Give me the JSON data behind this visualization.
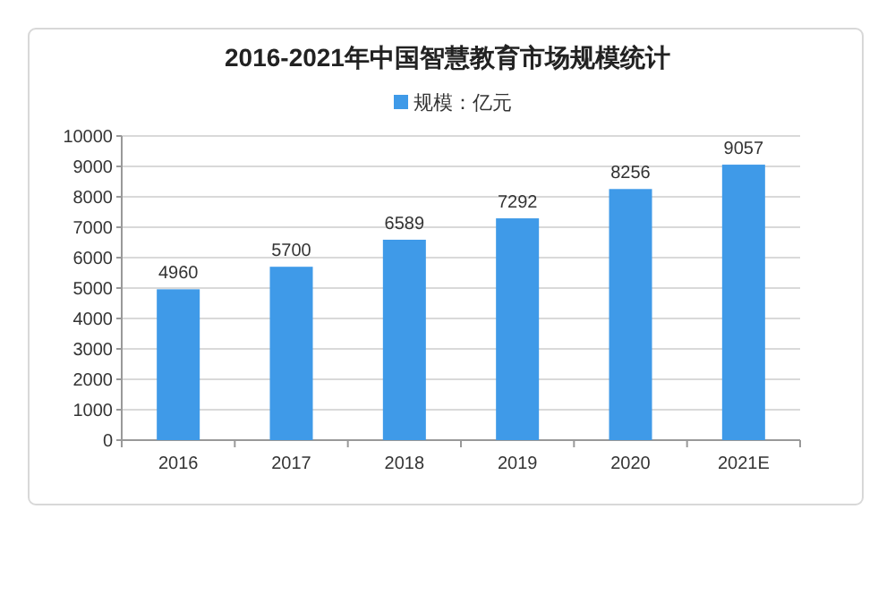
{
  "chart_data": {
    "type": "bar",
    "title": "2016-2021年中国智慧教育市场规模统计",
    "categories": [
      "2016",
      "2017",
      "2018",
      "2019",
      "2020",
      "2021E"
    ],
    "series": [
      {
        "name": "规模：亿元",
        "color": "#3f9ae8",
        "values": [
          4960,
          5700,
          6589,
          7292,
          8256,
          9057
        ]
      }
    ],
    "ylim": [
      0,
      10000
    ],
    "yticks": [
      0,
      1000,
      2000,
      3000,
      4000,
      5000,
      6000,
      7000,
      8000,
      9000,
      10000
    ],
    "grid": "y",
    "legend": "top",
    "data_labels": true
  }
}
